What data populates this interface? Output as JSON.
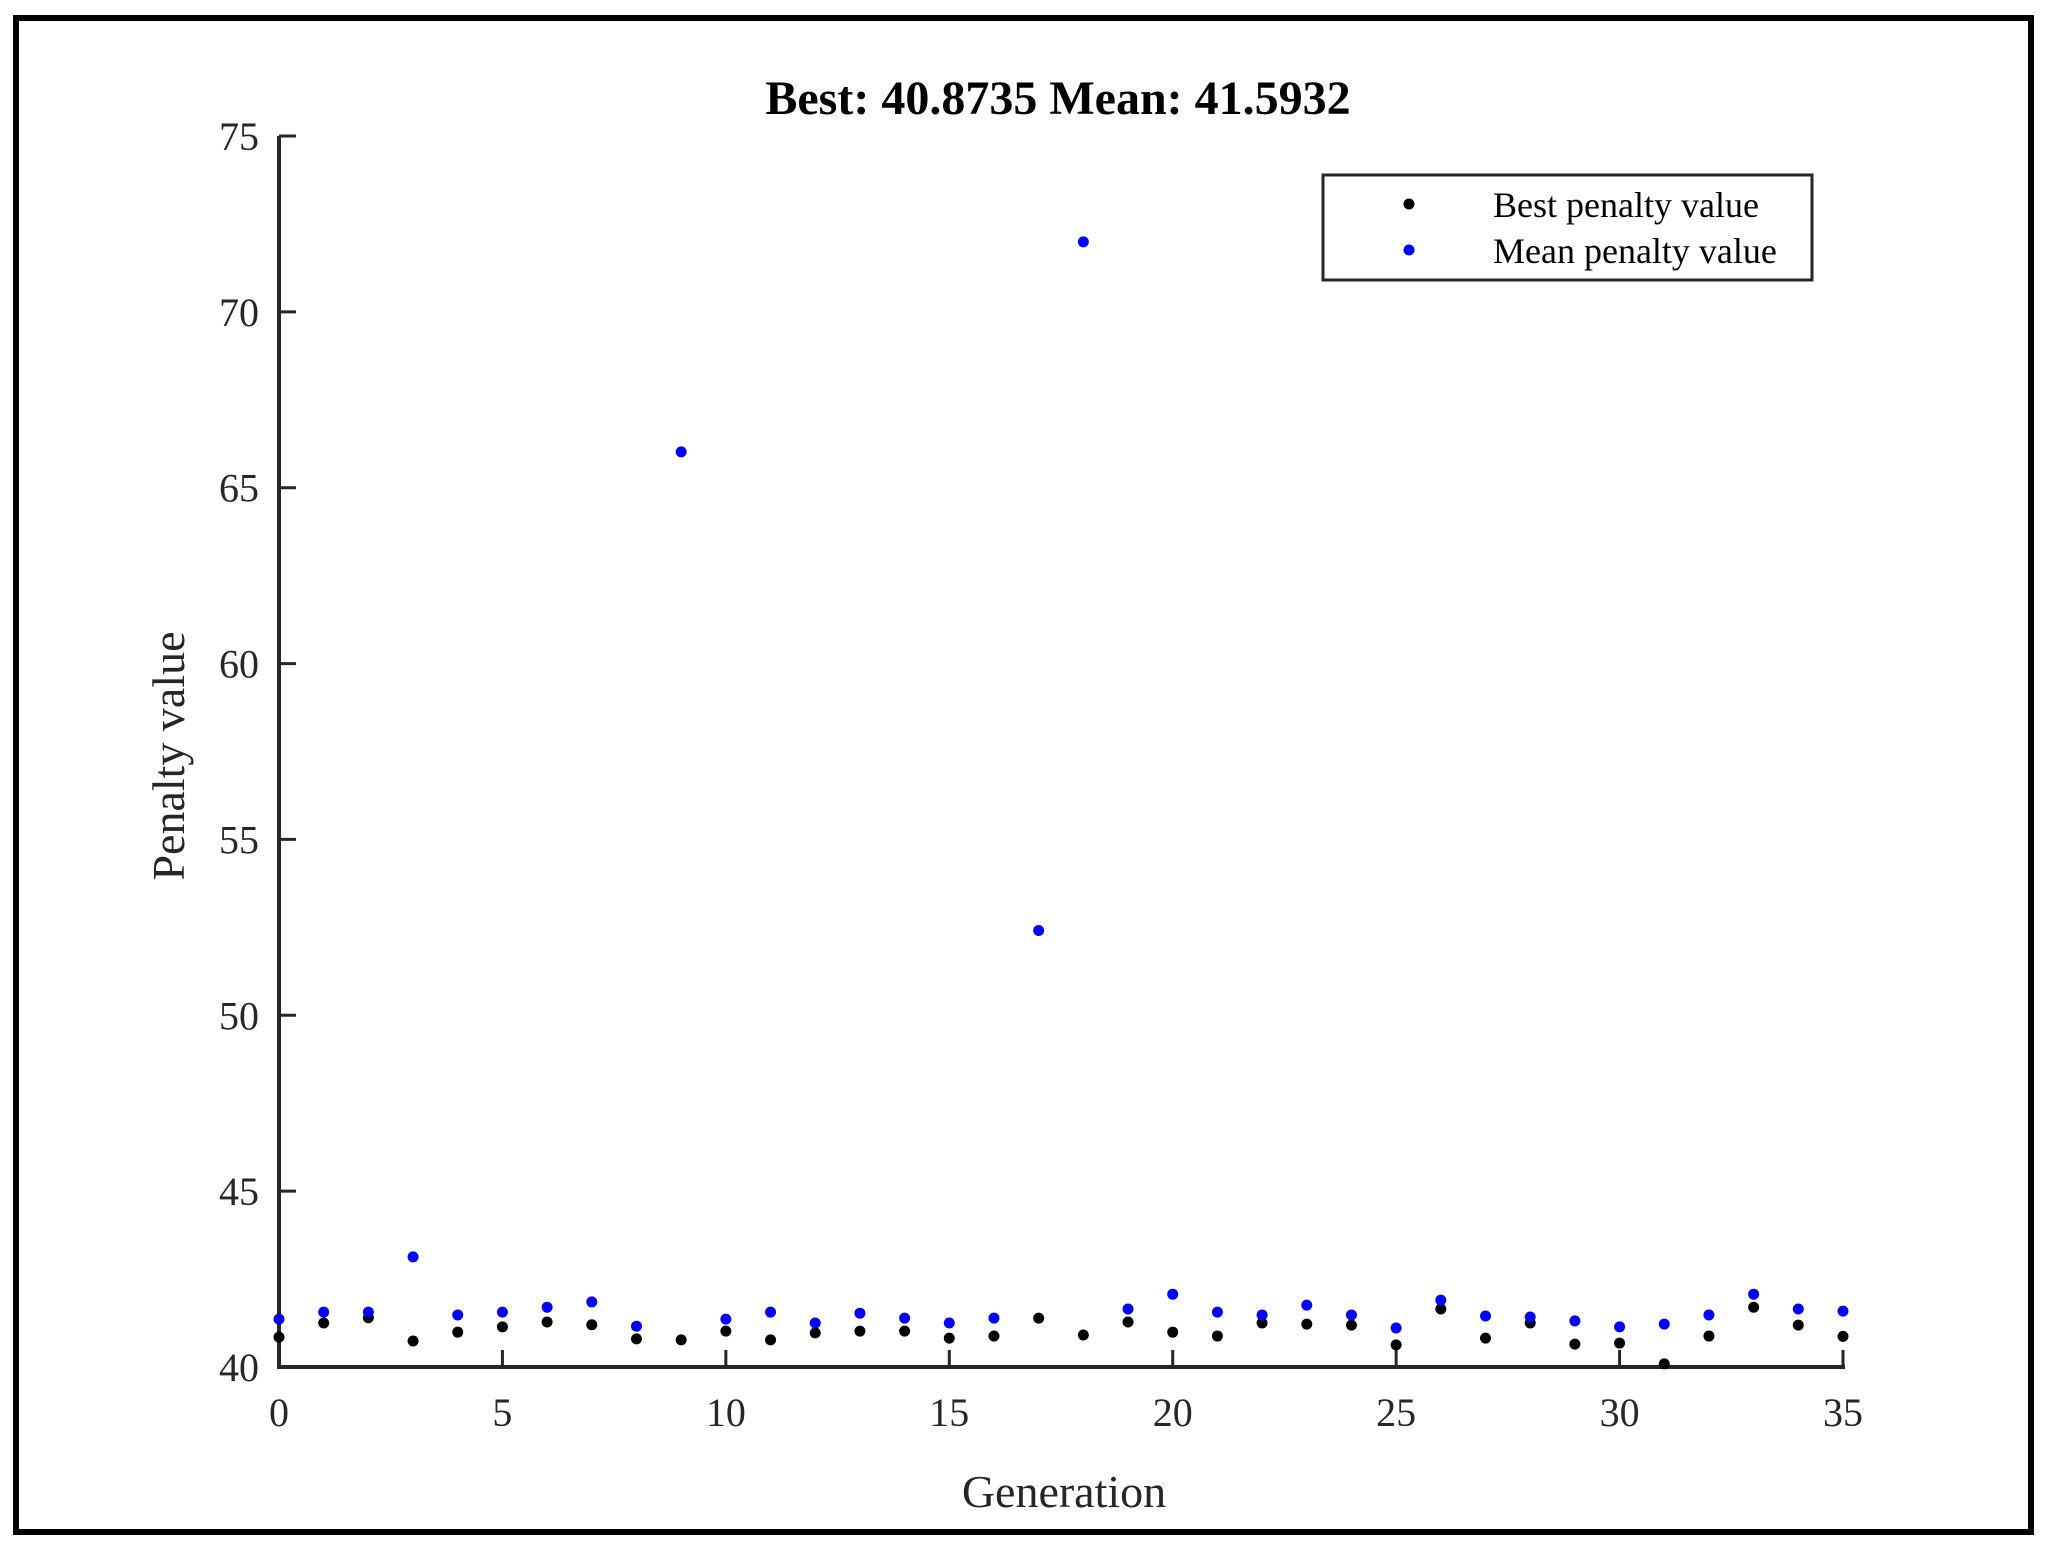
{
  "chart_data": {
    "type": "scatter",
    "title": "Best: 40.8735 Mean: 41.5932",
    "xlabel": "Generation",
    "ylabel": "Penalty value",
    "xlim": [
      0,
      35
    ],
    "ylim": [
      40,
      75
    ],
    "xticks": [
      0,
      5,
      10,
      15,
      20,
      25,
      30,
      35
    ],
    "yticks": [
      40,
      45,
      50,
      55,
      60,
      65,
      70,
      75
    ],
    "grid": false,
    "legend_position": "upper right",
    "x": [
      0,
      1,
      2,
      3,
      4,
      5,
      6,
      7,
      8,
      9,
      10,
      11,
      12,
      13,
      14,
      15,
      16,
      17,
      18,
      19,
      20,
      21,
      22,
      23,
      24,
      25,
      26,
      27,
      28,
      29,
      30,
      31,
      32,
      33,
      34,
      35
    ],
    "series": [
      {
        "name": "Best penalty value",
        "color": "#000000",
        "values": [
          40.85,
          41.25,
          41.4,
          40.74,
          40.99,
          41.14,
          41.28,
          41.2,
          40.8,
          40.77,
          41.02,
          40.77,
          40.97,
          41.02,
          41.02,
          40.82,
          40.88,
          41.39,
          40.91,
          41.28,
          40.99,
          40.88,
          41.25,
          41.22,
          41.19,
          40.63,
          41.65,
          40.82,
          41.25,
          40.65,
          40.68,
          40.09,
          40.88,
          41.7,
          41.19,
          40.87
        ]
      },
      {
        "name": "Mean penalty value",
        "color": "#0000ff",
        "values": [
          41.36,
          41.56,
          41.56,
          43.13,
          41.48,
          41.56,
          41.7,
          41.85,
          41.16,
          66.02,
          41.36,
          41.56,
          41.25,
          41.53,
          41.39,
          41.25,
          41.39,
          52.41,
          71.99,
          41.65,
          42.07,
          41.56,
          41.48,
          41.76,
          41.48,
          41.11,
          41.9,
          41.45,
          41.42,
          41.31,
          41.14,
          41.22,
          41.48,
          42.07,
          41.65,
          41.59
        ]
      }
    ]
  },
  "title": "Best: 40.8735 Mean: 41.5932",
  "axes": {
    "xlabel": "Generation",
    "ylabel": "Penalty value"
  },
  "legend": {
    "items": [
      {
        "label": "Best penalty value",
        "color": "#000000"
      },
      {
        "label": "Mean penalty value",
        "color": "#0000ff"
      }
    ]
  }
}
